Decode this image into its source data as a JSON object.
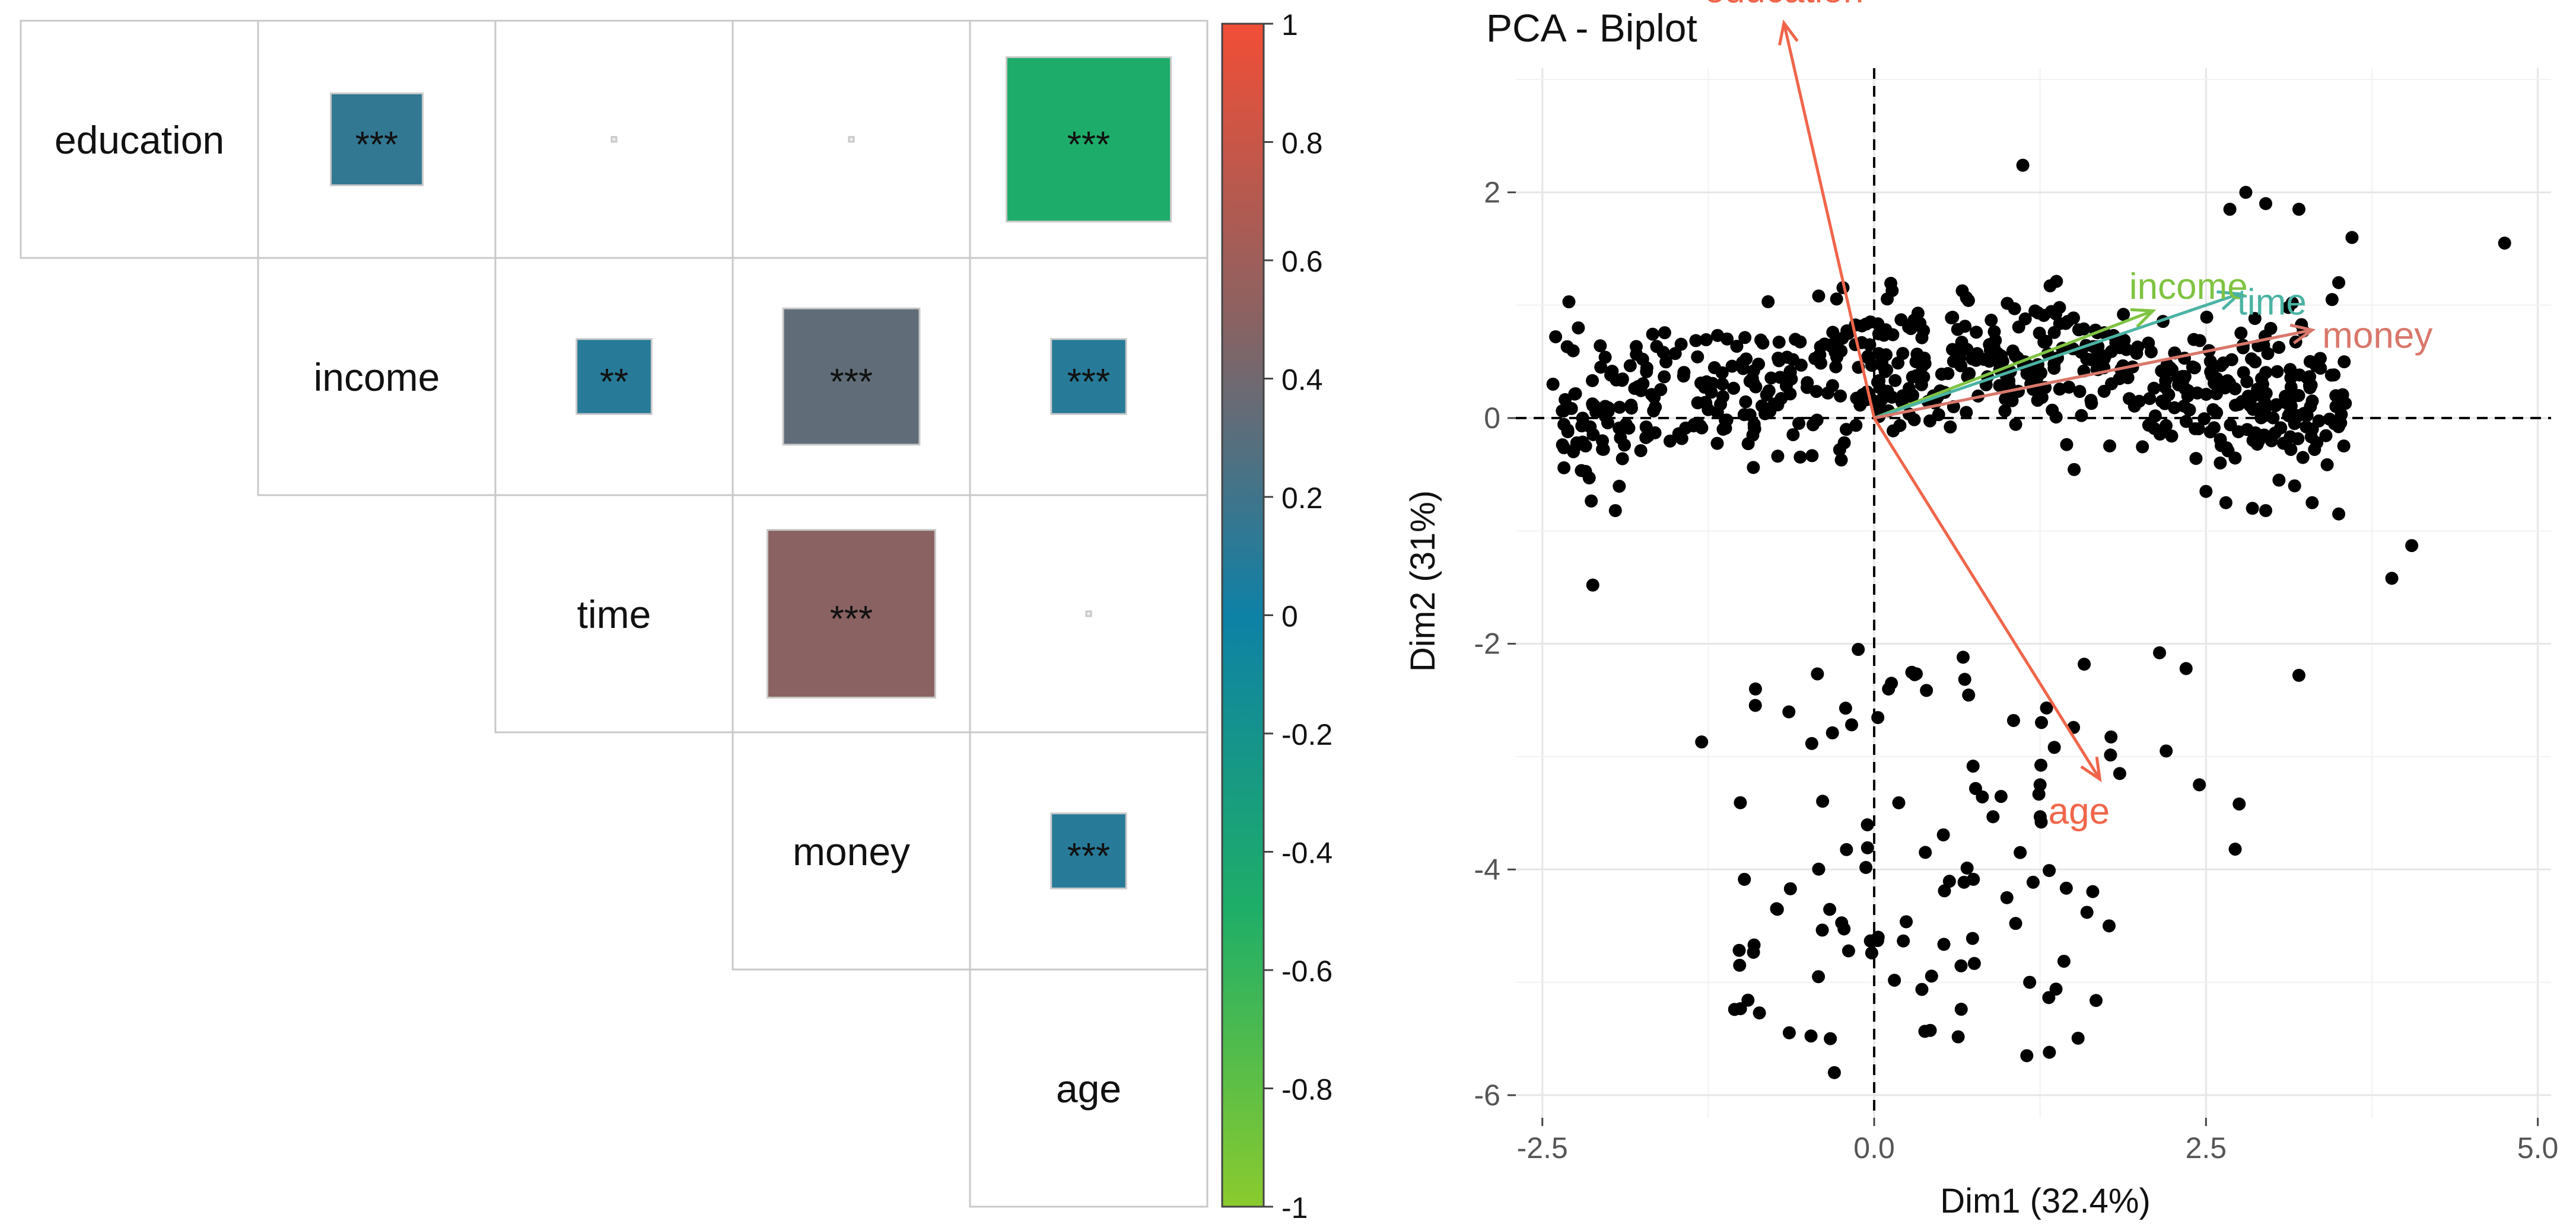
{
  "chart_data": [
    {
      "type": "heatmap",
      "subtype": "correlation-matrix-upper",
      "variables": [
        "education",
        "income",
        "time",
        "money",
        "age"
      ],
      "cells": [
        {
          "row": "education",
          "col": "income",
          "value": 0.15,
          "stars": "***"
        },
        {
          "row": "education",
          "col": "time",
          "value": 0.0,
          "stars": ""
        },
        {
          "row": "education",
          "col": "money",
          "value": 0.0,
          "stars": ""
        },
        {
          "row": "education",
          "col": "age",
          "value": -0.48,
          "stars": "***"
        },
        {
          "row": "income",
          "col": "time",
          "value": 0.1,
          "stars": "**"
        },
        {
          "row": "income",
          "col": "money",
          "value": 0.33,
          "stars": "***"
        },
        {
          "row": "income",
          "col": "age",
          "value": 0.1,
          "stars": "***"
        },
        {
          "row": "time",
          "col": "money",
          "value": 0.5,
          "stars": "***"
        },
        {
          "row": "time",
          "col": "age",
          "value": 0.0,
          "stars": ""
        },
        {
          "row": "money",
          "col": "age",
          "value": 0.1,
          "stars": "***"
        }
      ],
      "colorbar": {
        "ticks": [
          "1",
          "0.8",
          "0.6",
          "0.4",
          "0.2",
          "0",
          "-0.2",
          "-0.4",
          "-0.6",
          "-0.8",
          "-1"
        ],
        "range": [
          -1,
          1
        ],
        "colors": [
          "#8BCB2E",
          "#1FAE67",
          "#0E81A6",
          "#8A6262",
          "#F24E36"
        ]
      }
    },
    {
      "type": "scatter",
      "subtype": "pca-biplot",
      "title": "PCA - Biplot",
      "xlabel": "Dim1 (32.4%)",
      "ylabel": "Dim2 (31%)",
      "xlim": [
        -2.7,
        5.1
      ],
      "ylim": [
        -6.2,
        3.1
      ],
      "xticks": [
        {
          "value": -2.5,
          "label": "-2.5"
        },
        {
          "value": 0,
          "label": "0.0"
        },
        {
          "value": 2.5,
          "label": "2.5"
        },
        {
          "value": 5,
          "label": "5.0"
        }
      ],
      "yticks": [
        {
          "value": 2,
          "label": "2"
        },
        {
          "value": 0,
          "label": "0"
        },
        {
          "value": -2,
          "label": "-2"
        },
        {
          "value": -4,
          "label": "-4"
        },
        {
          "value": -6,
          "label": "-6"
        }
      ],
      "grid": true,
      "point_color": "#000000",
      "points_known": [
        [
          1.12,
          2.24
        ],
        [
          4.75,
          1.55
        ],
        [
          2.8,
          2.0
        ],
        [
          2.95,
          1.9
        ],
        [
          3.2,
          1.85
        ],
        [
          2.68,
          1.85
        ],
        [
          3.6,
          1.6
        ],
        [
          3.5,
          1.2
        ],
        [
          3.45,
          1.05
        ],
        [
          3.15,
          1.02
        ],
        [
          3.12,
          0.98
        ],
        [
          3.55,
          0.13
        ],
        [
          3.05,
          -0.55
        ],
        [
          3.3,
          -0.75
        ],
        [
          3.5,
          -0.85
        ],
        [
          3.9,
          -1.42
        ],
        [
          4.05,
          -1.13
        ],
        [
          3.2,
          -2.28
        ],
        [
          2.65,
          -0.75
        ],
        [
          2.85,
          -0.8
        ],
        [
          2.95,
          -0.82
        ],
        [
          2.5,
          -0.65
        ],
        [
          2.15,
          -2.08
        ],
        [
          2.35,
          -2.22
        ],
        [
          2.2,
          -2.95
        ],
        [
          2.45,
          -3.25
        ],
        [
          2.75,
          -3.42
        ],
        [
          2.72,
          -3.82
        ],
        [
          1.15,
          -5.65
        ],
        [
          1.32,
          -5.62
        ],
        [
          1.37,
          -5.06
        ],
        [
          -0.3,
          -5.8
        ],
        [
          -1.3,
          -2.87
        ],
        [
          -2.12,
          -1.48
        ],
        [
          -1.95,
          -0.82
        ],
        [
          -2.3,
          1.03
        ],
        [
          -2.4,
          0.72
        ],
        [
          -2.42,
          0.3
        ],
        [
          1.77,
          -4.5
        ],
        [
          1.85,
          -3.15
        ],
        [
          0.03,
          -4.6
        ],
        [
          -0.42,
          -4.95
        ],
        [
          0.13,
          -2.35
        ],
        [
          -0.12,
          -2.05
        ],
        [
          1.05,
          -2.68
        ],
        [
          1.25,
          -3.25
        ],
        [
          1.1,
          -3.85
        ],
        [
          1.0,
          -4.25
        ]
      ],
      "points_note": "approx. 700 additional black points concentrated in the band y in [-1.4, 1.5] for x in [-2.4, 3.6] and in a sparse lower cluster y in [-5.8, -2.0] for x in [-1.2, 1.9]",
      "arrows": [
        {
          "label": "education",
          "x": -0.68,
          "y": 3.5,
          "color": "#F0654A"
        },
        {
          "label": "income",
          "x": 2.1,
          "y": 0.95,
          "color": "#7FC342"
        },
        {
          "label": "time",
          "x": 2.75,
          "y": 1.1,
          "color": "#4BB3A4"
        },
        {
          "label": "money",
          "x": 3.3,
          "y": 0.78,
          "color": "#D9776B"
        },
        {
          "label": "age",
          "x": 1.7,
          "y": -3.2,
          "color": "#F0654A"
        }
      ]
    }
  ]
}
